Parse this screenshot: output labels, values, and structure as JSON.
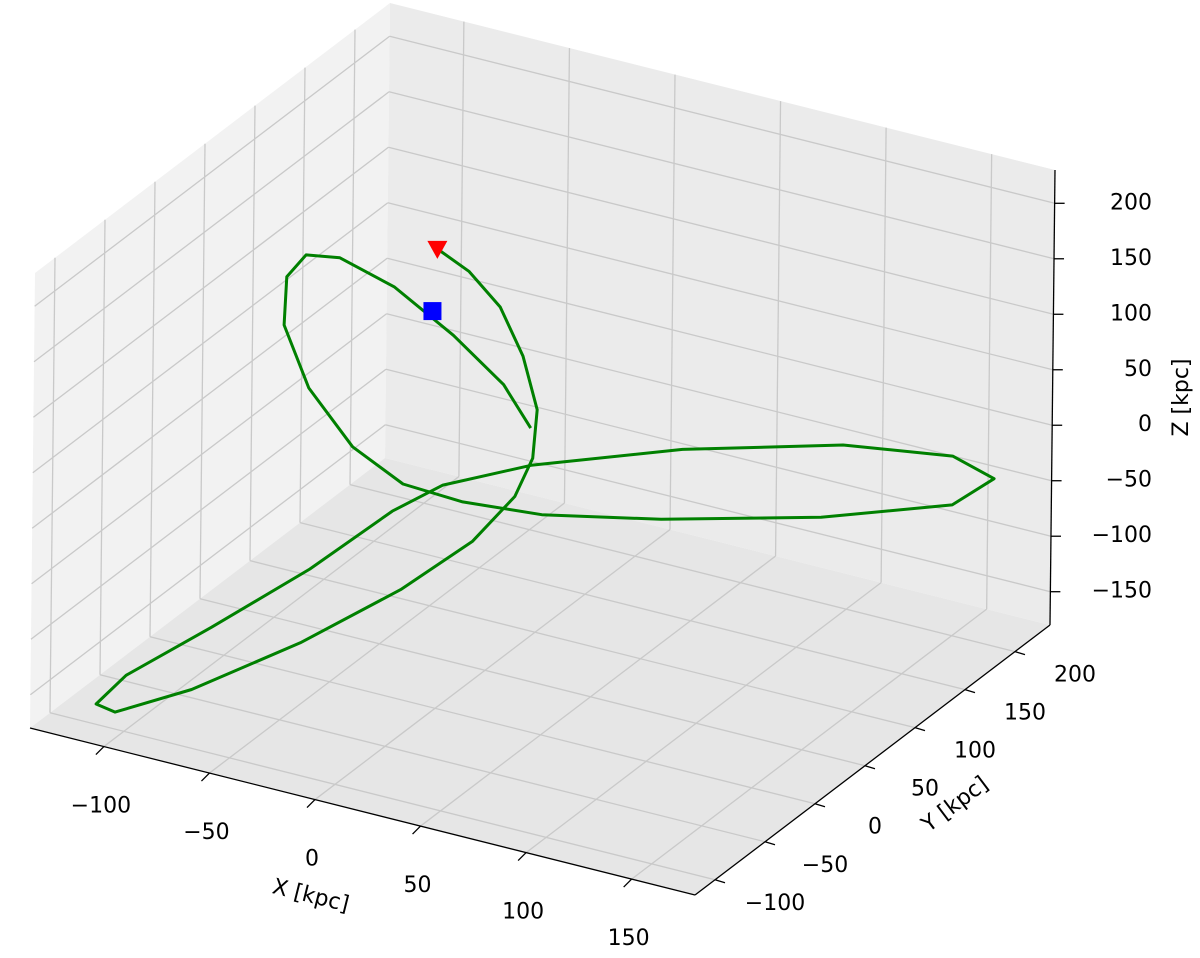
{
  "chart_data": {
    "type": "line3d",
    "xlabel": "X [kpc]",
    "ylabel": "Y [kpc]",
    "zlabel": "Z [kpc]",
    "xlim": [
      -135,
      180
    ],
    "ylim": [
      -120,
      235
    ],
    "zlim": [
      -180,
      230
    ],
    "xticks": [
      {
        "value": -100,
        "label": "−100"
      },
      {
        "value": -50,
        "label": "−50"
      },
      0,
      50,
      100,
      150
    ],
    "yticks": [
      {
        "value": -100,
        "label": "−100"
      },
      {
        "value": -50,
        "label": "−50"
      },
      0,
      50,
      100,
      150,
      200
    ],
    "zticks": [
      {
        "value": -150,
        "label": "−150"
      },
      {
        "value": -100,
        "label": "−100"
      },
      {
        "value": -50,
        "label": "−50"
      },
      0,
      50,
      100,
      150,
      200
    ],
    "grid": true,
    "series": [
      {
        "color": "#008000",
        "x": [
          -20,
          -5,
          10,
          21,
          28,
          28,
          23,
          15,
          -7,
          -41,
          -79,
          -108,
          -117,
          -110,
          -83,
          -50,
          -23,
          -11,
          24,
          72,
          123,
          158,
          173,
          158,
          113,
          59,
          19,
          -10,
          -35,
          -59,
          -80,
          -92,
          -91,
          -82,
          -66,
          -40,
          -12,
          12,
          25
        ],
        "y": [
          40,
          40,
          40,
          40,
          40,
          36,
          29,
          4,
          -21,
          -49,
          -77,
          -92,
          -92,
          -77,
          -49,
          -21,
          4,
          29,
          43,
          93,
          146,
          182,
          192,
          182,
          146,
          100,
          65,
          47,
          40,
          40,
          40,
          40,
          40,
          40,
          40,
          40,
          40,
          40,
          40
        ],
        "z": [
          197,
          184,
          159,
          120,
          75,
          34,
          2,
          -25,
          -62,
          -107,
          -148,
          -172,
          -169,
          -150,
          -113,
          -64,
          -16,
          -4,
          21,
          24,
          16,
          -2,
          -22,
          -46,
          -54,
          -50,
          -41,
          -31,
          -22,
          0,
          43,
          94,
          138,
          162,
          167,
          153,
          123,
          90,
          57
        ]
      }
    ],
    "markers": [
      {
        "marker": "square",
        "color": "#0000ff",
        "x": [
          -22
        ],
        "y": [
          40
        ],
        "z": [
          140
        ]
      },
      {
        "marker": "triangle_down",
        "color": "#ff0000",
        "x": [
          -20
        ],
        "y": [
          40
        ],
        "z": [
          197
        ]
      }
    ]
  }
}
